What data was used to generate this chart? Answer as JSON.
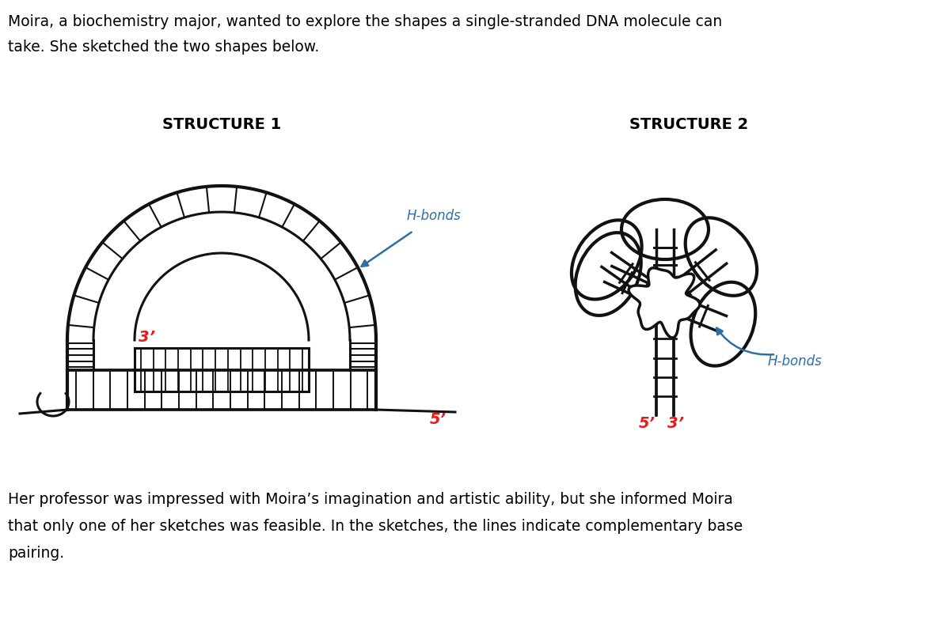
{
  "bg_color": "#ffffff",
  "text_color": "#000000",
  "red_color": "#e8191a",
  "blue_color": "#2e6fa3",
  "draw_color": "#111111",
  "title_text1": "Moira, a biochemistry major, wanted to explore the shapes a single-stranded DNA molecule can",
  "title_text2": "take. She sketched the two shapes below.",
  "bottom_text1": "Her professor was impressed with Moira’s imagination and artistic ability, but she informed Moira",
  "bottom_text2": "that only one of her sketches was feasible. In the sketches, the lines indicate complementary base",
  "bottom_text3": "pairing.",
  "struct1_label": "STRUCTURE 1",
  "struct2_label": "STRUCTURE 2",
  "label_3prime": "3’",
  "label_5prime": "5’",
  "label_hbonds1": "H-bonds",
  "label_hbonds2": "H-bonds",
  "figwidth": 12.0,
  "figheight": 7.89,
  "dpi": 100
}
